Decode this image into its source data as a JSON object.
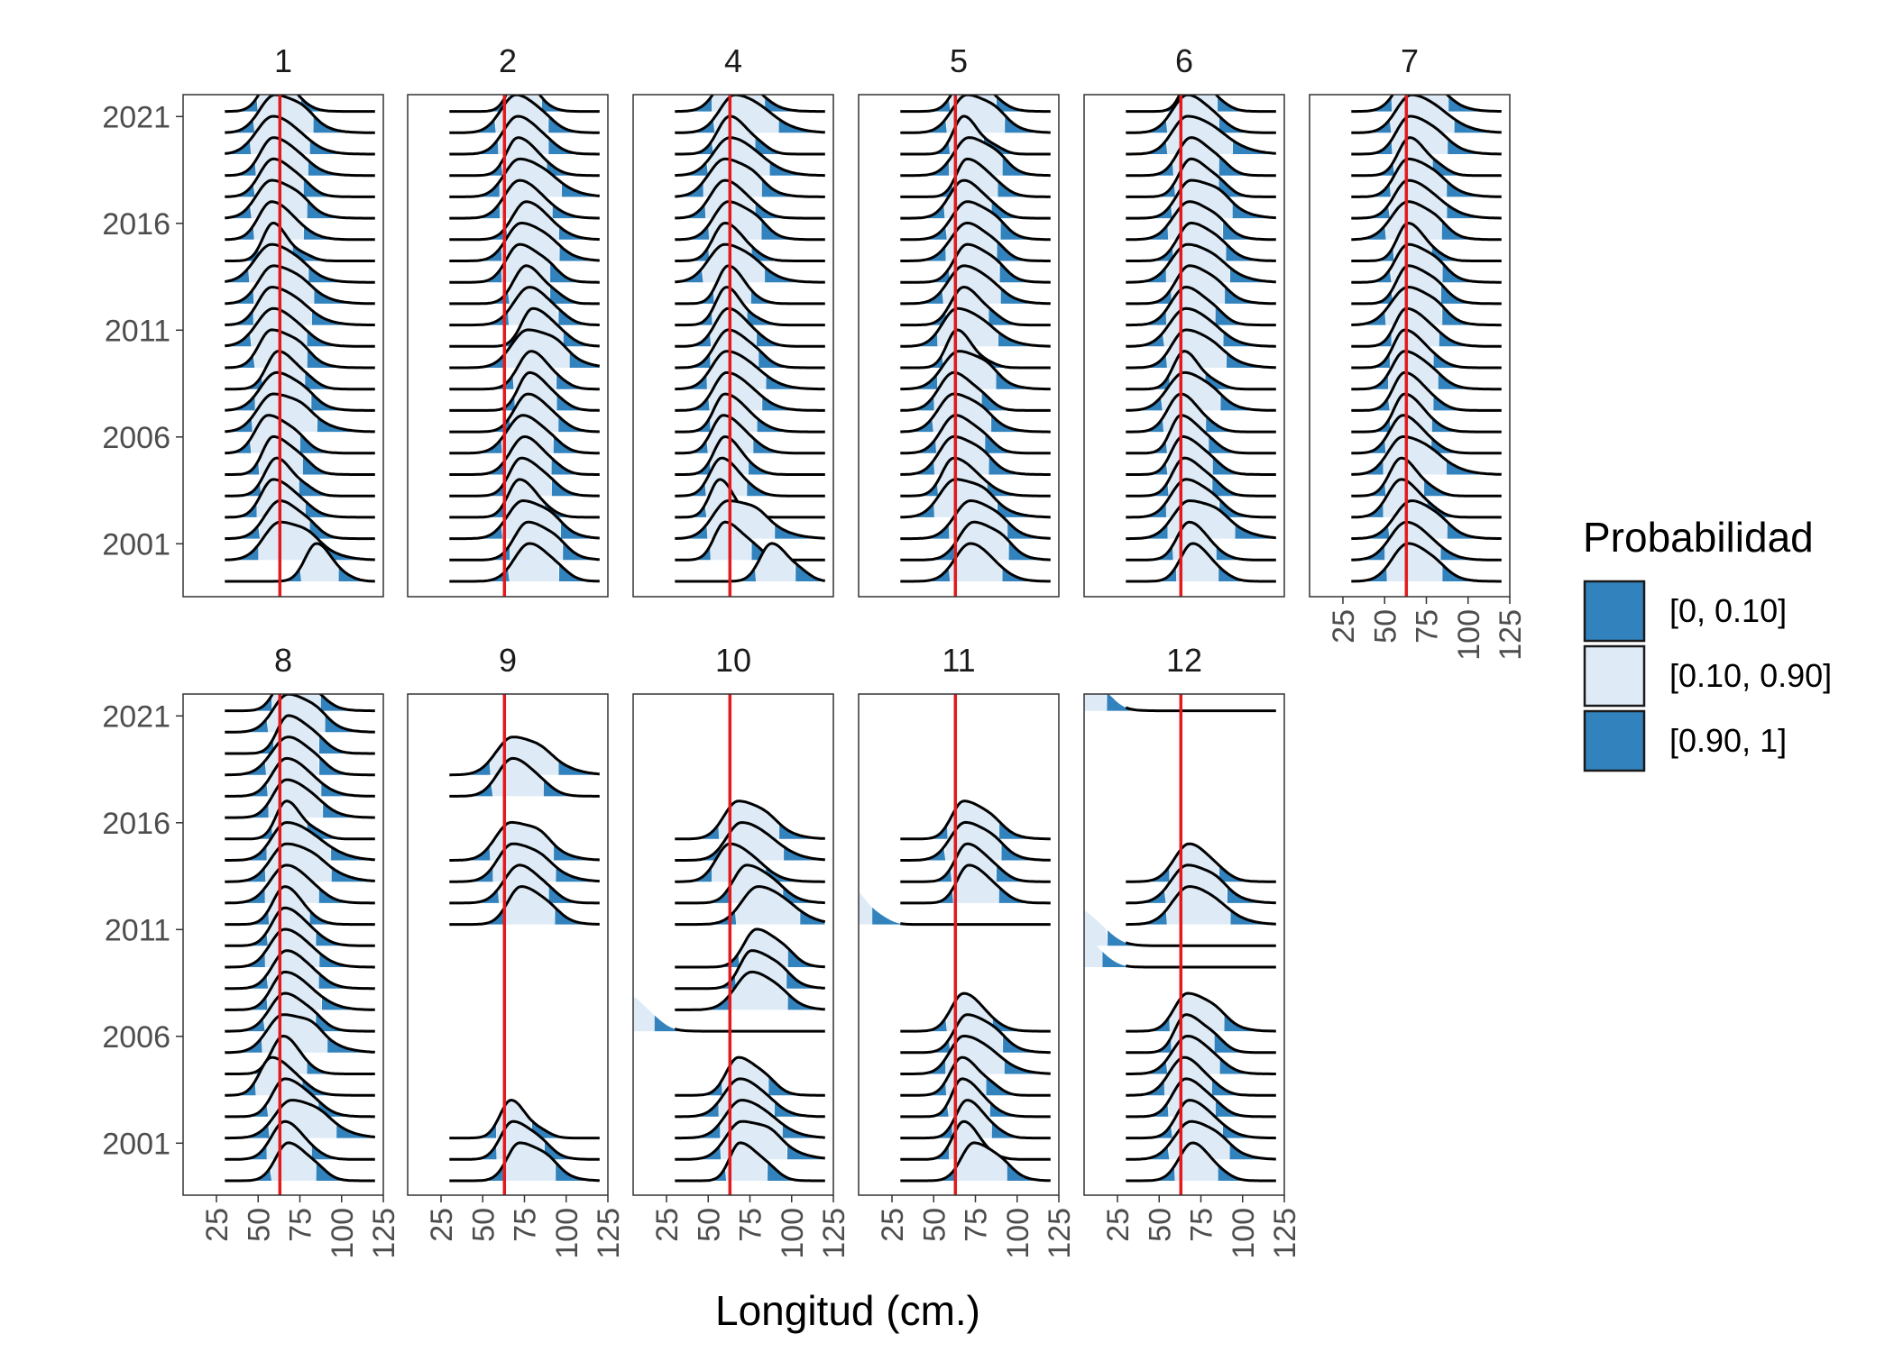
{
  "chart_data": {
    "type": "ridgeline",
    "xlabel": "Longitud (cm.)",
    "x_ticks": [
      25,
      50,
      75,
      100,
      125
    ],
    "xlim": [
      5,
      125
    ],
    "y_ticks": [
      "2001",
      "2006",
      "2011",
      "2016",
      "2021"
    ],
    "years": [
      2000,
      2001,
      2002,
      2003,
      2004,
      2005,
      2006,
      2007,
      2008,
      2009,
      2010,
      2011,
      2012,
      2013,
      2014,
      2015,
      2016,
      2017,
      2018,
      2019,
      2020,
      2021,
      2022,
      2023
    ],
    "reference_line": 63,
    "reference_color": "#e31a1c",
    "legend": {
      "title": "Probabilidad",
      "items": [
        {
          "label": "[0, 0.10]",
          "color": "#3182bd"
        },
        {
          "label": "[0.10, 0.90]",
          "color": "#deebf7"
        },
        {
          "label": "[0.90, 1]",
          "color": "#3182bd"
        }
      ]
    },
    "panels": [
      {
        "label": "1",
        "missing": [],
        "mode": [
          85,
          63,
          63,
          59,
          61,
          59,
          56,
          59,
          61,
          62,
          58,
          59,
          58,
          59,
          58,
          59,
          58,
          58,
          59,
          59,
          59,
          60,
          60,
          61
        ]
      },
      {
        "label": "2",
        "missing": [],
        "mode": [
          78,
          77,
          74,
          72,
          73,
          75,
          74,
          77,
          78,
          79,
          77,
          80,
          78,
          76,
          72,
          73,
          76,
          72,
          72,
          71,
          71,
          70,
          72,
          73
        ]
      },
      {
        "label": "4",
        "missing": [],
        "mode": [
          88,
          60,
          62,
          57,
          58,
          60,
          59,
          60,
          61,
          61,
          62,
          62,
          61,
          62,
          60,
          60,
          62,
          60,
          60,
          63,
          63,
          66,
          64,
          61
        ]
      },
      {
        "label": "5",
        "missing": [],
        "mode": [
          72,
          74,
          72,
          63,
          62,
          62,
          63,
          62,
          62,
          65,
          64,
          64,
          68,
          68,
          70,
          70,
          70,
          68,
          70,
          71,
          68,
          70,
          70,
          72
        ]
      },
      {
        "label": "6",
        "missing": [],
        "mode": [
          70,
          68,
          68,
          66,
          65,
          64,
          63,
          63,
          65,
          65,
          66,
          66,
          66,
          68,
          67,
          69,
          68,
          69,
          69,
          69,
          67,
          67,
          70,
          70
        ]
      },
      {
        "label": "7",
        "missing": [],
        "mode": [
          64,
          63,
          66,
          60,
          60,
          61,
          61,
          62,
          62,
          62,
          62,
          63,
          64,
          64,
          64,
          64,
          64,
          64,
          64,
          65,
          65,
          66,
          66,
          65
        ]
      },
      {
        "label": "8",
        "missing": [],
        "mode": [
          68,
          66,
          70,
          66,
          58,
          65,
          65,
          66,
          66,
          67,
          66,
          66,
          66,
          67,
          67,
          67,
          67,
          67,
          67,
          68,
          68,
          68,
          68,
          69
        ]
      },
      {
        "label": "9",
        "missing": [
          3,
          4,
          5,
          6,
          7,
          8,
          9,
          10,
          11,
          16,
          17,
          20,
          21,
          22
        ],
        "mode": [
          72,
          68,
          67,
          60,
          0,
          0,
          0,
          0,
          0,
          0,
          0,
          0,
          73,
          72,
          68,
          67,
          0,
          0,
          68,
          68,
          0,
          0,
          0,
          70
        ]
      },
      {
        "label": "10",
        "missing": [
          5,
          6,
          11,
          17,
          18,
          19,
          20,
          21,
          22
        ],
        "mode": [
          69,
          70,
          70,
          69,
          68,
          71,
          0,
          0,
          76,
          76,
          79,
          0,
          80,
          73,
          63,
          70,
          68,
          0,
          0,
          0,
          0,
          0,
          0,
          71
        ]
      },
      {
        "label": "11",
        "missing": [
          8,
          9,
          10,
          11,
          17,
          18,
          19,
          20,
          21,
          22
        ],
        "mode": [
          74,
          68,
          70,
          67,
          67,
          68,
          70,
          68,
          71,
          71,
          0,
          0,
          0,
          71,
          70,
          69,
          68,
          71,
          69,
          70,
          0,
          0,
          0,
          0
        ]
      },
      {
        "label": "12",
        "missing": [
          8,
          9,
          15,
          16,
          17,
          18,
          19,
          20,
          21
        ],
        "mode": [
          70,
          69,
          68,
          66,
          65,
          67,
          66,
          67,
          70,
          68,
          0,
          0,
          68,
          67,
          68,
          67,
          67,
          70,
          68,
          69,
          0,
          0,
          0,
          68
        ]
      }
    ]
  }
}
